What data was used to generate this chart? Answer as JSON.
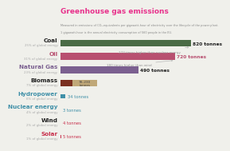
{
  "title": "Greenhouse gas emissions",
  "subtitle1": "Measured in emissions of CO₂-equivalents per gigawatt-hour of electricity over the lifecycle of the power plant.",
  "subtitle2": "1 gigawatt-hour is the annual electricity consumption of 560 people in the EU.",
  "title_color": "#e8328c",
  "background_color": "#f0f0eb",
  "categories": [
    "Coal",
    "Oil",
    "Natural Gas",
    "Biomass",
    "Hydropower",
    "Nuclear energy",
    "Wind",
    "Solar"
  ],
  "subcategories": [
    "25% of global energy",
    "31% of global energy",
    "23% of global energy",
    "7% of global energy",
    "6% of global energy",
    "4% of global energy",
    "2% of global energy",
    "1% of global energy"
  ],
  "values": [
    820,
    720,
    490,
    230,
    34,
    3,
    4,
    5
  ],
  "values_low": [
    null,
    null,
    null,
    78,
    null,
    null,
    null,
    null
  ],
  "bar_colors": [
    "#4a6b45",
    "#b85070",
    "#7b6090",
    "#7a3020",
    "#4090a8",
    "#4090a8",
    "#c8304c",
    "#c8304c"
  ],
  "biomass_range_color": "#c0a878",
  "name_colors": [
    "#222222",
    "#b85070",
    "#7b6090",
    "#222222",
    "#4090a8",
    "#4090a8",
    "#222222",
    "#c8304c"
  ],
  "value_colors": [
    "#222222",
    "#b85070",
    "#222222",
    "#555555",
    "#4090a8",
    "#4090a8",
    "#c8304c",
    "#c8304c"
  ],
  "annotation1": "273 times higher than nuclear energy",
  "annotation2": "180 times higher than wind",
  "annotation_color": "#999999",
  "max_val": 850,
  "bar_height": 0.52
}
